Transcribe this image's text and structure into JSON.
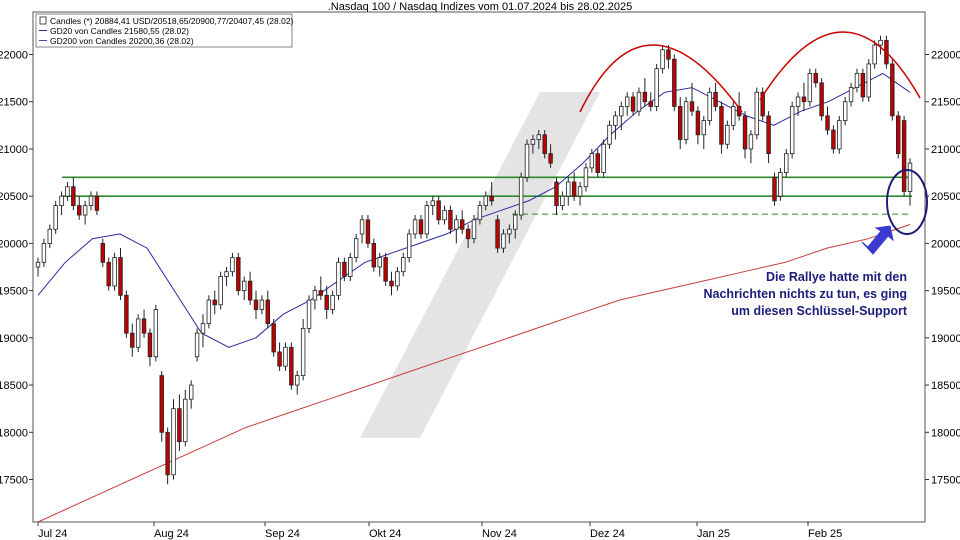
{
  "chart_data": {
    "type": "candlestick",
    "title": ".Nasdaq 100 / Nasdaq Indizes vom 01.07.2024 bis 28.02.2025",
    "legend": {
      "placement": "top-left",
      "entries": [
        {
          "label": "Candles (*) 20884,41 USD/20518,65/20900,77/20407,45 (28.02)",
          "swatch": "box"
        },
        {
          "label": "GD20 von Candles 21580,55 (28.02)",
          "swatch": "line",
          "color": "#2a2aa0"
        },
        {
          "label": "GD200 von Candles 20200,36 (28.02)",
          "swatch": "line",
          "color": "#4a4ab0"
        }
      ]
    },
    "y_ticks": [
      17500,
      18000,
      18500,
      19000,
      19500,
      20000,
      20500,
      21000,
      21500,
      22000
    ],
    "ylim": [
      17050,
      22450
    ],
    "x_ticks": [
      "Jul 24",
      "Aug 24",
      "Sep 24",
      "Okt 24",
      "Nov 24",
      "Dez 24",
      "Jan 25",
      "Feb 25"
    ],
    "colors": {
      "up": "#ffffff",
      "down": "#c00000",
      "gd20": "#2a2aa0",
      "gd200": "#c83c3c",
      "support": "#2e8b2e",
      "arc": "#cc0000",
      "annotation": "#1c1c7a",
      "watermark": "#e4e4e4"
    },
    "support_levels": [
      20700,
      20500
    ],
    "dashed_level": 20310,
    "gd20": [
      19450,
      19800,
      20050,
      20100,
      19950,
      19500,
      19050,
      18900,
      19000,
      19250,
      19400,
      19600,
      19800,
      19900,
      20000,
      20100,
      20250,
      20350,
      20450,
      20600,
      20850,
      21150,
      21400,
      21600,
      21650,
      21500,
      21350,
      21250,
      21400,
      21500,
      21650,
      21800,
      21600
    ],
    "gd200": [
      17050,
      17250,
      17450,
      17650,
      17850,
      18050,
      18200,
      18350,
      18500,
      18650,
      18800,
      18950,
      19100,
      19250,
      19400,
      19500,
      19600,
      19700,
      19800,
      19950,
      20050,
      20200
    ],
    "candles": [
      [
        19750,
        19850,
        19650,
        19800
      ],
      [
        19800,
        20050,
        19750,
        20000
      ],
      [
        20000,
        20200,
        19950,
        20150
      ],
      [
        20150,
        20450,
        20100,
        20400
      ],
      [
        20400,
        20550,
        20300,
        20500
      ],
      [
        20500,
        20650,
        20450,
        20600
      ],
      [
        20600,
        20700,
        20350,
        20400
      ],
      [
        20400,
        20500,
        20250,
        20300
      ],
      [
        20300,
        20450,
        20200,
        20400
      ],
      [
        20400,
        20550,
        20350,
        20500
      ],
      [
        20500,
        20550,
        20300,
        20350
      ],
      [
        20000,
        20050,
        19750,
        19800
      ],
      [
        19800,
        19850,
        19500,
        19550
      ],
      [
        19550,
        19900,
        19500,
        19850
      ],
      [
        19850,
        19950,
        19400,
        19450
      ],
      [
        19450,
        19500,
        19000,
        19050
      ],
      [
        19050,
        19150,
        18800,
        18900
      ],
      [
        18900,
        19250,
        18850,
        19200
      ],
      [
        19200,
        19300,
        19000,
        19050
      ],
      [
        19050,
        19100,
        18700,
        18800
      ],
      [
        18800,
        19350,
        18750,
        19300
      ],
      [
        18600,
        18650,
        17900,
        18000
      ],
      [
        18000,
        18050,
        17450,
        17550
      ],
      [
        17550,
        18350,
        17500,
        18250
      ],
      [
        18250,
        18400,
        17800,
        17900
      ],
      [
        17900,
        18450,
        17850,
        18350
      ],
      [
        18350,
        18550,
        18250,
        18500
      ],
      [
        18800,
        19100,
        18750,
        19050
      ],
      [
        19050,
        19250,
        18900,
        19150
      ],
      [
        19150,
        19450,
        19100,
        19400
      ],
      [
        19400,
        19500,
        19250,
        19350
      ],
      [
        19350,
        19700,
        19300,
        19650
      ],
      [
        19650,
        19750,
        19550,
        19700
      ],
      [
        19700,
        19900,
        19650,
        19850
      ],
      [
        19850,
        19900,
        19450,
        19500
      ],
      [
        19500,
        19650,
        19400,
        19600
      ],
      [
        19600,
        19700,
        19350,
        19400
      ],
      [
        19400,
        19500,
        19200,
        19300
      ],
      [
        19300,
        19450,
        19250,
        19400
      ],
      [
        19400,
        19500,
        19100,
        19150
      ],
      [
        19150,
        19200,
        18800,
        18850
      ],
      [
        18850,
        18950,
        18650,
        18700
      ],
      [
        18700,
        18950,
        18650,
        18900
      ],
      [
        18900,
        18950,
        18450,
        18500
      ],
      [
        18500,
        18650,
        18400,
        18600
      ],
      [
        18600,
        19200,
        18550,
        19100
      ],
      [
        19100,
        19450,
        19050,
        19400
      ],
      [
        19400,
        19550,
        19300,
        19500
      ],
      [
        19500,
        19650,
        19400,
        19450
      ],
      [
        19450,
        19550,
        19200,
        19300
      ],
      [
        19300,
        19500,
        19250,
        19450
      ],
      [
        19450,
        19850,
        19400,
        19800
      ],
      [
        19800,
        19850,
        19600,
        19650
      ],
      [
        19650,
        19900,
        19600,
        19850
      ],
      [
        19850,
        20100,
        19800,
        20050
      ],
      [
        20100,
        20300,
        20000,
        20250
      ],
      [
        20250,
        20300,
        19950,
        20000
      ],
      [
        20000,
        20050,
        19700,
        19750
      ],
      [
        19750,
        19900,
        19650,
        19850
      ],
      [
        19850,
        19900,
        19550,
        19600
      ],
      [
        19600,
        19700,
        19450,
        19550
      ],
      [
        19550,
        19750,
        19500,
        19700
      ],
      [
        19700,
        19900,
        19650,
        19850
      ],
      [
        19850,
        20150,
        19800,
        20100
      ],
      [
        20100,
        20300,
        20050,
        20250
      ],
      [
        20250,
        20300,
        20050,
        20100
      ],
      [
        20100,
        20450,
        20050,
        20400
      ],
      [
        20400,
        20500,
        20300,
        20450
      ],
      [
        20450,
        20500,
        20200,
        20250
      ],
      [
        20250,
        20400,
        20200,
        20350
      ],
      [
        20350,
        20400,
        20100,
        20150
      ],
      [
        20150,
        20300,
        20000,
        20250
      ],
      [
        20250,
        20350,
        20100,
        20150
      ],
      [
        20150,
        20200,
        19950,
        20050
      ],
      [
        20050,
        20300,
        20000,
        20250
      ],
      [
        20250,
        20450,
        20200,
        20400
      ],
      [
        20400,
        20550,
        20350,
        20500
      ],
      [
        20500,
        20650,
        20400,
        20450
      ],
      [
        20250,
        20300,
        19900,
        19950
      ],
      [
        19950,
        20150,
        19900,
        20100
      ],
      [
        20100,
        20200,
        20000,
        20150
      ],
      [
        20150,
        20350,
        20050,
        20300
      ],
      [
        20300,
        20750,
        20250,
        20700
      ],
      [
        20700,
        21100,
        20650,
        21050
      ],
      [
        21050,
        21150,
        20950,
        21100
      ],
      [
        21100,
        21200,
        21000,
        21150
      ],
      [
        21150,
        21200,
        20900,
        20950
      ],
      [
        20950,
        21050,
        20800,
        20850
      ],
      [
        20650,
        20700,
        20300,
        20400
      ],
      [
        20400,
        20550,
        20350,
        20500
      ],
      [
        20500,
        20700,
        20400,
        20650
      ],
      [
        20650,
        20750,
        20450,
        20500
      ],
      [
        20500,
        20650,
        20400,
        20600
      ],
      [
        20600,
        20850,
        20550,
        20800
      ],
      [
        20800,
        21000,
        20750,
        20950
      ],
      [
        20950,
        21000,
        20700,
        20750
      ],
      [
        20750,
        21100,
        20700,
        21050
      ],
      [
        21050,
        21300,
        21000,
        21250
      ],
      [
        21250,
        21400,
        21100,
        21350
      ],
      [
        21350,
        21500,
        21200,
        21450
      ],
      [
        21450,
        21600,
        21350,
        21550
      ],
      [
        21550,
        21600,
        21350,
        21400
      ],
      [
        21400,
        21650,
        21350,
        21600
      ],
      [
        21600,
        21750,
        21450,
        21500
      ],
      [
        21500,
        21600,
        21400,
        21450
      ],
      [
        21450,
        21900,
        21400,
        21850
      ],
      [
        21850,
        22100,
        21800,
        22050
      ],
      [
        22050,
        22100,
        21850,
        21950
      ],
      [
        21950,
        22000,
        21400,
        21450
      ],
      [
        21450,
        21550,
        21000,
        21100
      ],
      [
        21100,
        21550,
        21050,
        21500
      ],
      [
        21500,
        21700,
        21350,
        21400
      ],
      [
        21400,
        21450,
        21050,
        21150
      ],
      [
        21150,
        21350,
        21000,
        21300
      ],
      [
        21300,
        21650,
        21250,
        21600
      ],
      [
        21600,
        21700,
        21400,
        21450
      ],
      [
        21450,
        21500,
        20950,
        21050
      ],
      [
        21050,
        21300,
        21000,
        21250
      ],
      [
        21250,
        21500,
        21200,
        21450
      ],
      [
        21450,
        21600,
        21300,
        21350
      ],
      [
        21350,
        21400,
        20900,
        21000
      ],
      [
        21000,
        21200,
        20850,
        21150
      ],
      [
        21150,
        21650,
        21100,
        21600
      ],
      [
        21600,
        21650,
        21300,
        21350
      ],
      [
        21350,
        21400,
        20850,
        20950
      ],
      [
        20700,
        20750,
        20400,
        20450
      ],
      [
        20500,
        20800,
        20450,
        20750
      ],
      [
        20750,
        21000,
        20700,
        20950
      ],
      [
        20950,
        21500,
        20900,
        21450
      ],
      [
        21450,
        21600,
        21350,
        21550
      ],
      [
        21550,
        21700,
        21400,
        21500
      ],
      [
        21500,
        21850,
        21450,
        21800
      ],
      [
        21800,
        21850,
        21650,
        21700
      ],
      [
        21700,
        21750,
        21300,
        21350
      ],
      [
        21350,
        21450,
        21150,
        21200
      ],
      [
        21200,
        21250,
        20950,
        21000
      ],
      [
        21000,
        21350,
        20950,
        21300
      ],
      [
        21300,
        21550,
        21250,
        21500
      ],
      [
        21500,
        21700,
        21450,
        21650
      ],
      [
        21650,
        21850,
        21600,
        21800
      ],
      [
        21800,
        21850,
        21500,
        21550
      ],
      [
        21550,
        21950,
        21500,
        21900
      ],
      [
        21900,
        22150,
        21850,
        22100
      ],
      [
        22100,
        22200,
        22000,
        22150
      ],
      [
        22150,
        22200,
        21850,
        21900
      ],
      [
        21900,
        21950,
        21300,
        21350
      ],
      [
        21350,
        21400,
        20900,
        20950
      ],
      [
        21300,
        21350,
        20500,
        20550
      ],
      [
        20550,
        20900,
        20400,
        20850
      ]
    ],
    "annotation": {
      "lines": [
        "Die Rallye hatte mit den",
        "Nachrichten nichts zu tun, es ging",
        "um diesen Schlüssel-Support"
      ]
    }
  }
}
